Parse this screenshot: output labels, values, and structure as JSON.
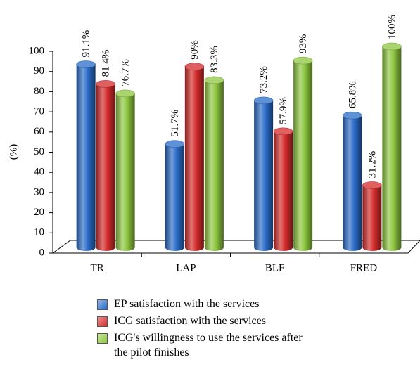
{
  "chart_data": {
    "type": "bar3d",
    "ylabel": "(%)",
    "categories": [
      "TR",
      "LAP",
      "BLF",
      "FRED"
    ],
    "series": [
      {
        "name": "EP satisfaction with the services",
        "color": "#2a6cc8",
        "values": [
          91.1,
          51.7,
          73.2,
          65.8
        ],
        "value_labels": [
          "91.1%",
          "51.7%",
          "73.2%",
          "65.8%"
        ]
      },
      {
        "name": "ICG satisfaction with the services",
        "color": "#d42b2b",
        "values": [
          81.4,
          90,
          57.9,
          31.2
        ],
        "value_labels": [
          "81.4%",
          "90%",
          "57.9%",
          "31.2%"
        ]
      },
      {
        "name": "ICG's willingness to use the services after the pilot finishes",
        "color": "#8dc63f",
        "values": [
          76.7,
          83.3,
          93,
          100
        ],
        "value_labels": [
          "76.7%",
          "83.3%",
          "93%",
          "100%"
        ]
      }
    ],
    "ylim": [
      0,
      100
    ],
    "yticks": [
      0,
      10,
      20,
      30,
      40,
      50,
      60,
      70,
      80,
      90,
      100
    ],
    "legend": "bottom"
  }
}
